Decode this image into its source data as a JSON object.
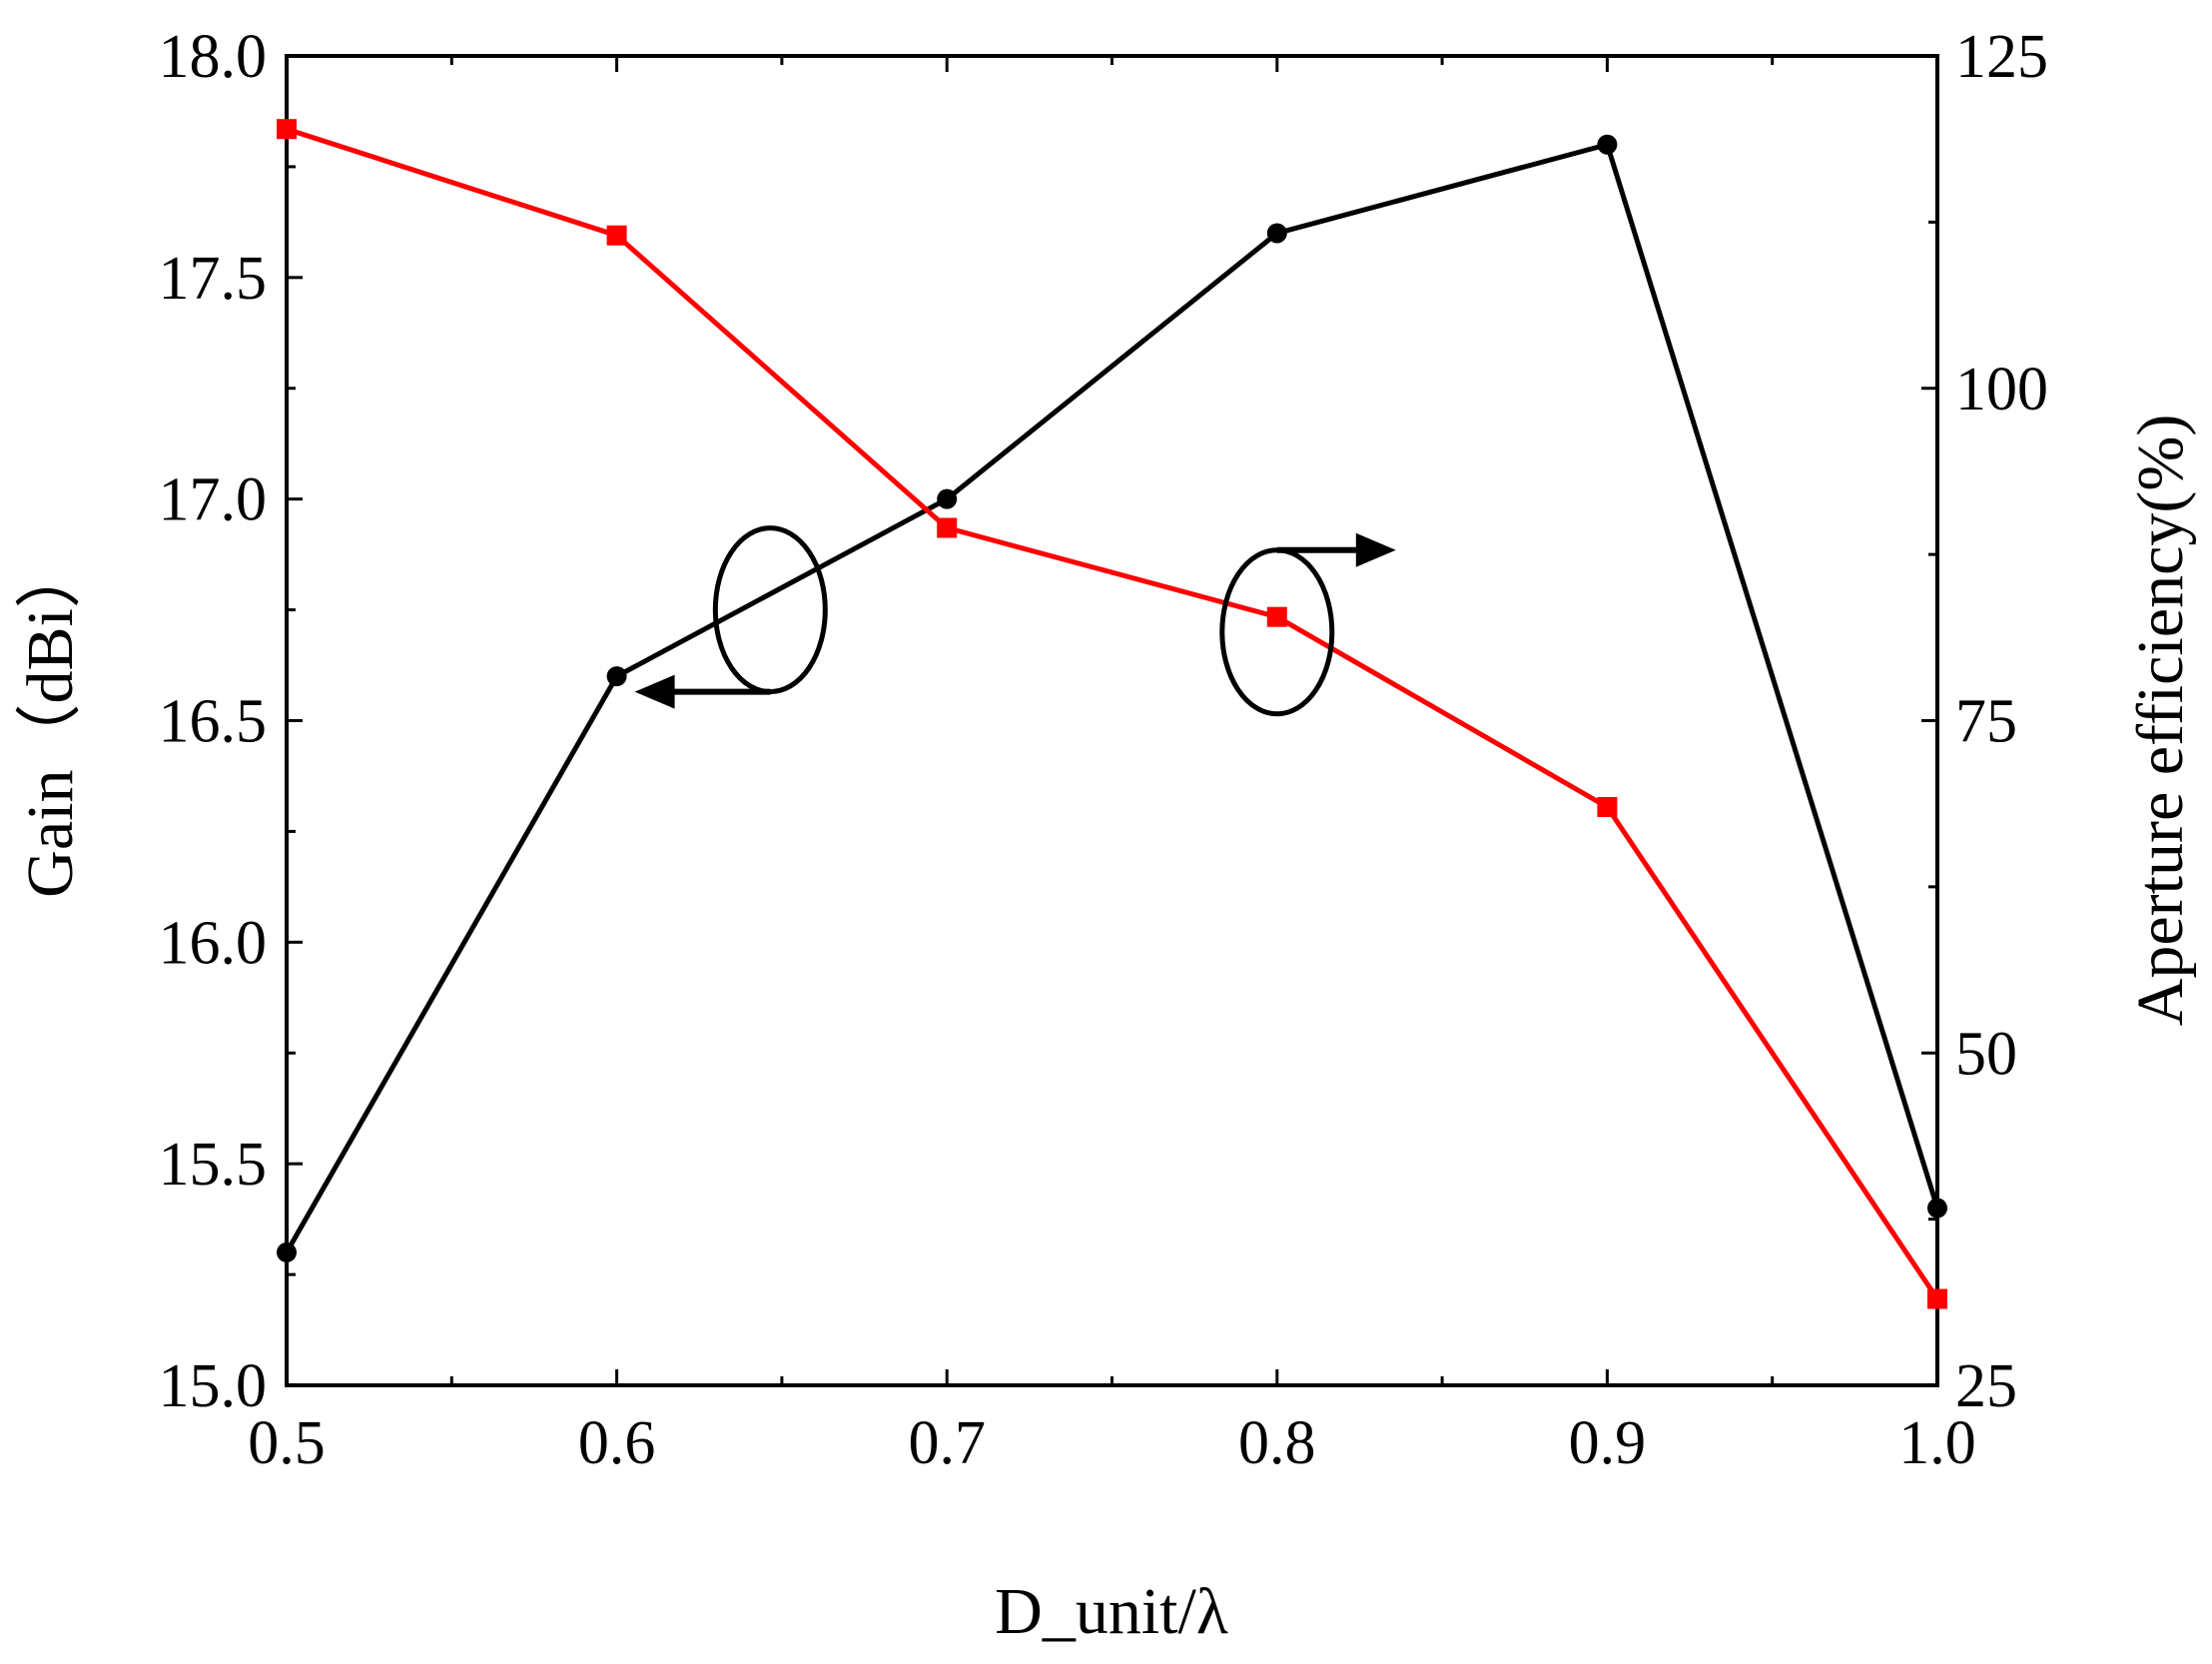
{
  "chart_data": {
    "type": "line",
    "title": "",
    "xlabel": "D_unit/λ",
    "ylabel": "Gain（dBi）",
    "y2label": "Aperture efficiency(%)",
    "x": [
      0.5,
      0.6,
      0.7,
      0.8,
      0.9,
      1.0
    ],
    "xlim": [
      0.5,
      1.0
    ],
    "ylim": [
      15.0,
      18.0
    ],
    "y2lim": [
      25,
      125
    ],
    "x_ticks": [
      "0.5",
      "0.6",
      "0.7",
      "0.8",
      "0.9",
      "1.0"
    ],
    "y_ticks": [
      "15.0",
      "15.5",
      "16.0",
      "16.5",
      "17.0",
      "17.5",
      "18.0"
    ],
    "y2_ticks": [
      "25",
      "50",
      "75",
      "100",
      "125"
    ],
    "grid": false,
    "series": [
      {
        "axis": "left",
        "marker": "circle",
        "color": "#000000",
        "values": [
          15.3,
          16.6,
          17.0,
          17.6,
          17.8,
          15.4
        ]
      },
      {
        "axis": "right",
        "marker": "square",
        "color": "#ff0000",
        "values": [
          119.5,
          111.5,
          89.5,
          82.8,
          68.5,
          31.5
        ]
      }
    ],
    "annotations": [
      {
        "kind": "ellipse-with-arrow",
        "direction": "left",
        "points_to": "Gain"
      },
      {
        "kind": "ellipse-with-arrow",
        "direction": "right",
        "points_to": "Aperture efficiency"
      }
    ]
  }
}
